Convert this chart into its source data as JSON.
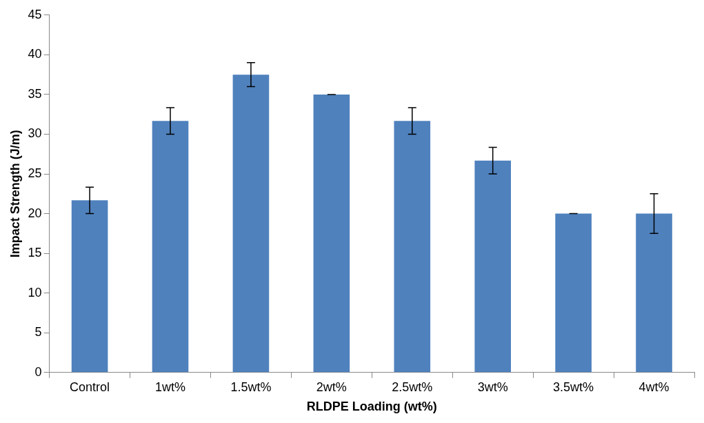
{
  "chart_data": {
    "type": "bar",
    "xlabel": "RLDPE Loading (wt%)",
    "ylabel": "Impact Strength (J/m)",
    "categories": [
      "Control",
      "1wt%",
      "1.5wt%",
      "2wt%",
      "2.5wt%",
      "3wt%",
      "3.5wt%",
      "4wt%"
    ],
    "values": [
      21.67,
      31.67,
      37.5,
      35,
      31.67,
      26.67,
      20,
      20
    ],
    "errors": [
      1.67,
      1.67,
      1.5,
      0,
      1.67,
      1.67,
      0,
      2.5
    ],
    "color": "#4f81bd",
    "ylim": [
      0,
      45
    ],
    "yticks": [
      0,
      5,
      10,
      15,
      20,
      25,
      30,
      35,
      40,
      45
    ],
    "grid": false,
    "legend": false
  }
}
